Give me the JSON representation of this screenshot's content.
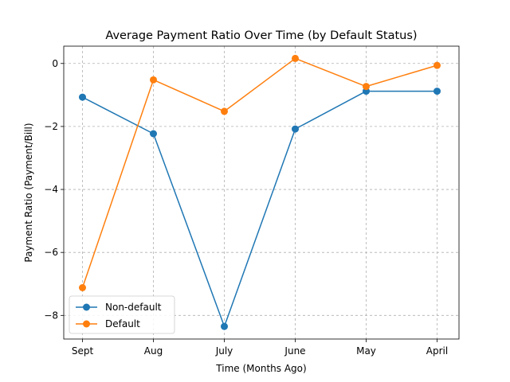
{
  "chart_data": {
    "type": "line",
    "title": "Average Payment Ratio Over Time (by Default Status)",
    "xlabel": "Time (Months Ago)",
    "ylabel": "Payment Ratio (Payment/Bill)",
    "categories": [
      "Sept",
      "Aug",
      "July",
      "June",
      "May",
      "April"
    ],
    "ylim": [
      -8.75,
      0.55
    ],
    "yticks": [
      0,
      -2,
      -4,
      -6,
      -8
    ],
    "ytick_labels": [
      "0",
      "−2",
      "−4",
      "−6",
      "−8"
    ],
    "grid": true,
    "legend_position": "lower-left",
    "series": [
      {
        "name": "Non-default",
        "color": "#1f77b4",
        "values": [
          -1.07,
          -2.23,
          -8.35,
          -2.08,
          -0.88,
          -0.88
        ]
      },
      {
        "name": "Default",
        "color": "#ff7f0e",
        "values": [
          -7.12,
          -0.52,
          -1.52,
          0.16,
          -0.73,
          -0.06
        ]
      }
    ]
  }
}
